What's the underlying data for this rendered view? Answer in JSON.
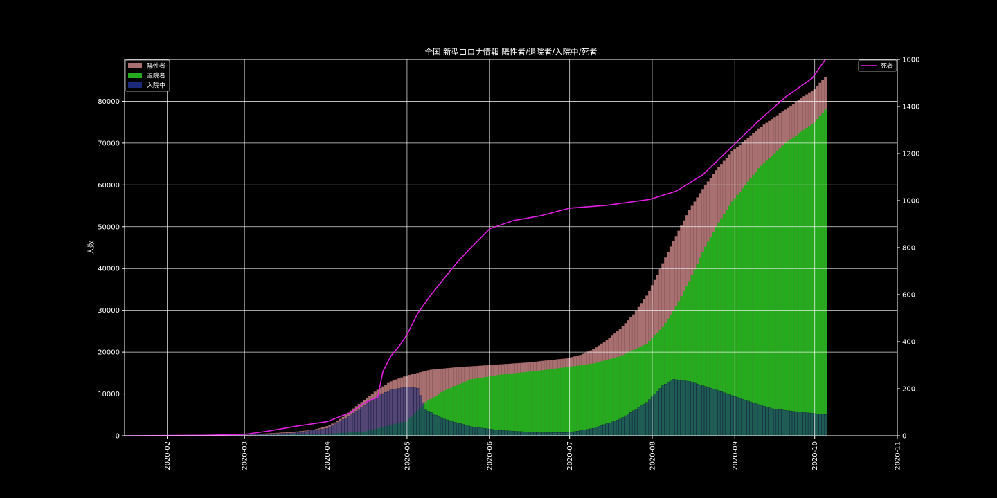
{
  "chart_data": {
    "type": "bar",
    "title": "全国 新型コロナ情報 陽性者/退院者/入院中/死者",
    "ylabel": "人数",
    "ylim": [
      0,
      90000
    ],
    "y2lim": [
      0,
      1600
    ],
    "xlim": [
      "2020-01-16",
      "2020-11-01"
    ],
    "yticks": [
      0,
      10000,
      20000,
      30000,
      40000,
      50000,
      60000,
      70000,
      80000
    ],
    "y2ticks": [
      0,
      200,
      400,
      600,
      800,
      1000,
      1200,
      1400,
      1600
    ],
    "xticks": [
      "2020-02",
      "2020-03",
      "2020-04",
      "2020-05",
      "2020-06",
      "2020-07",
      "2020-08",
      "2020-09",
      "2020-10",
      "2020-11"
    ],
    "grid": true,
    "legend_left": [
      "陽性者",
      "退院者",
      "入院中"
    ],
    "legend_right": [
      "死者"
    ],
    "colors": {
      "positive": "#a87070",
      "discharged": "#26ab1e",
      "hospitalized": "#1b2a78",
      "deaths": "#e020e0",
      "grid": "#ffffff",
      "background": "#000000"
    },
    "series": [
      {
        "name": "陽性者",
        "axis": "left",
        "points": [
          [
            "2020-01-16",
            1
          ],
          [
            "2020-02-01",
            17
          ],
          [
            "2020-02-15",
            60
          ],
          [
            "2020-03-01",
            240
          ],
          [
            "2020-03-10",
            560
          ],
          [
            "2020-03-20",
            950
          ],
          [
            "2020-03-27",
            1450
          ],
          [
            "2020-04-01",
            2300
          ],
          [
            "2020-04-05",
            3500
          ],
          [
            "2020-04-10",
            6000
          ],
          [
            "2020-04-15",
            8600
          ],
          [
            "2020-04-20",
            11000
          ],
          [
            "2020-04-25",
            13000
          ],
          [
            "2020-05-01",
            14400
          ],
          [
            "2020-05-10",
            15800
          ],
          [
            "2020-05-20",
            16400
          ],
          [
            "2020-06-01",
            16900
          ],
          [
            "2020-06-15",
            17500
          ],
          [
            "2020-06-30",
            18500
          ],
          [
            "2020-07-05",
            19300
          ],
          [
            "2020-07-10",
            20700
          ],
          [
            "2020-07-15",
            22900
          ],
          [
            "2020-07-20",
            25500
          ],
          [
            "2020-07-25",
            29000
          ],
          [
            "2020-07-30",
            33500
          ],
          [
            "2020-08-03",
            38500
          ],
          [
            "2020-08-07",
            44000
          ],
          [
            "2020-08-11",
            49000
          ],
          [
            "2020-08-15",
            54000
          ],
          [
            "2020-08-20",
            59000
          ],
          [
            "2020-08-25",
            63500
          ],
          [
            "2020-08-31",
            68000
          ],
          [
            "2020-09-10",
            73500
          ],
          [
            "2020-09-20",
            78000
          ],
          [
            "2020-10-01",
            83000
          ],
          [
            "2020-10-05",
            85800
          ]
        ]
      },
      {
        "name": "退院者",
        "axis": "left",
        "points": [
          [
            "2020-01-16",
            0
          ],
          [
            "2020-03-01",
            50
          ],
          [
            "2020-04-01",
            500
          ],
          [
            "2020-04-15",
            1000
          ],
          [
            "2020-05-01",
            3500
          ],
          [
            "2020-05-08",
            8000
          ],
          [
            "2020-05-15",
            10800
          ],
          [
            "2020-05-25",
            13500
          ],
          [
            "2020-06-05",
            14600
          ],
          [
            "2020-06-20",
            15600
          ],
          [
            "2020-07-01",
            16500
          ],
          [
            "2020-07-10",
            17300
          ],
          [
            "2020-07-20",
            19000
          ],
          [
            "2020-07-30",
            22000
          ],
          [
            "2020-08-05",
            26000
          ],
          [
            "2020-08-10",
            31000
          ],
          [
            "2020-08-15",
            37000
          ],
          [
            "2020-08-20",
            44000
          ],
          [
            "2020-08-25",
            50000
          ],
          [
            "2020-08-31",
            56000
          ],
          [
            "2020-09-10",
            64000
          ],
          [
            "2020-09-20",
            70000
          ],
          [
            "2020-10-01",
            75000
          ],
          [
            "2020-10-05",
            78000
          ]
        ]
      },
      {
        "name": "入院中",
        "axis": "left",
        "points": [
          [
            "2020-01-16",
            0
          ],
          [
            "2020-03-01",
            200
          ],
          [
            "2020-03-20",
            700
          ],
          [
            "2020-04-01",
            1800
          ],
          [
            "2020-04-10",
            5000
          ],
          [
            "2020-04-20",
            9500
          ],
          [
            "2020-04-25",
            11000
          ],
          [
            "2020-05-01",
            11700
          ],
          [
            "2020-05-05",
            11400
          ],
          [
            "2020-05-08",
            6200
          ],
          [
            "2020-05-15",
            4000
          ],
          [
            "2020-05-25",
            2200
          ],
          [
            "2020-06-05",
            1300
          ],
          [
            "2020-06-20",
            750
          ],
          [
            "2020-07-01",
            800
          ],
          [
            "2020-07-10",
            1800
          ],
          [
            "2020-07-20",
            4000
          ],
          [
            "2020-07-30",
            8000
          ],
          [
            "2020-08-05",
            12000
          ],
          [
            "2020-08-09",
            13500
          ],
          [
            "2020-08-15",
            13000
          ],
          [
            "2020-08-25",
            11000
          ],
          [
            "2020-09-05",
            8500
          ],
          [
            "2020-09-15",
            6500
          ],
          [
            "2020-09-25",
            5700
          ],
          [
            "2020-10-05",
            5100
          ]
        ]
      },
      {
        "name": "死者",
        "axis": "right",
        "points": [
          [
            "2020-01-16",
            0
          ],
          [
            "2020-02-15",
            2
          ],
          [
            "2020-03-01",
            6
          ],
          [
            "2020-03-10",
            20
          ],
          [
            "2020-03-20",
            40
          ],
          [
            "2020-04-01",
            60
          ],
          [
            "2020-04-10",
            100
          ],
          [
            "2020-04-15",
            140
          ],
          [
            "2020-04-20",
            165
          ],
          [
            "2020-04-22",
            275
          ],
          [
            "2020-04-25",
            340
          ],
          [
            "2020-04-28",
            380
          ],
          [
            "2020-05-01",
            430
          ],
          [
            "2020-05-05",
            520
          ],
          [
            "2020-05-10",
            600
          ],
          [
            "2020-05-15",
            670
          ],
          [
            "2020-05-20",
            740
          ],
          [
            "2020-05-25",
            800
          ],
          [
            "2020-06-01",
            880
          ],
          [
            "2020-06-10",
            915
          ],
          [
            "2020-06-20",
            935
          ],
          [
            "2020-07-01",
            968
          ],
          [
            "2020-07-15",
            980
          ],
          [
            "2020-07-31",
            1005
          ],
          [
            "2020-08-10",
            1040
          ],
          [
            "2020-08-20",
            1110
          ],
          [
            "2020-08-31",
            1230
          ],
          [
            "2020-09-10",
            1340
          ],
          [
            "2020-09-20",
            1440
          ],
          [
            "2020-09-30",
            1520
          ],
          [
            "2020-10-05",
            1600
          ]
        ]
      }
    ]
  }
}
